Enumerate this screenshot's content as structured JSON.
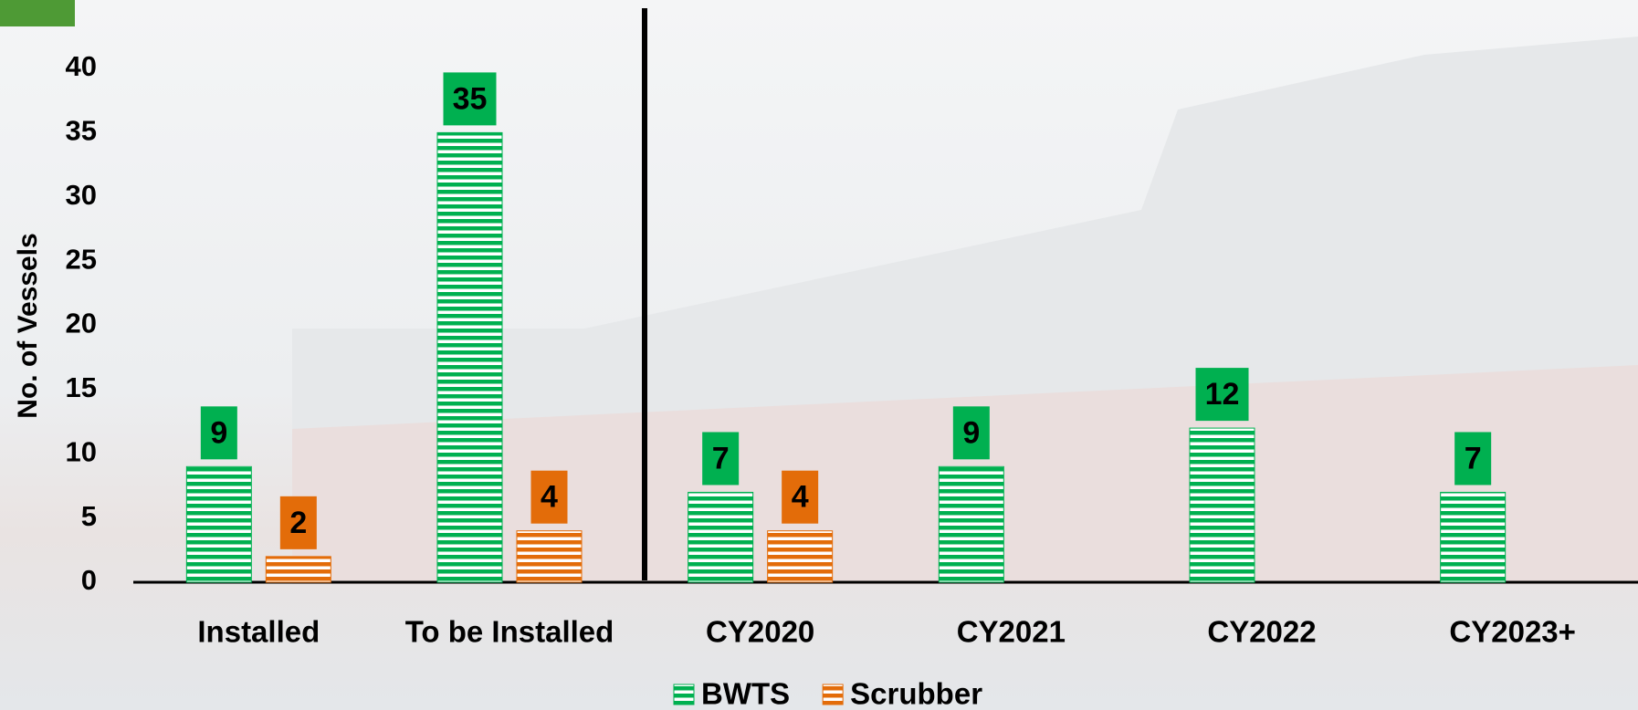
{
  "chart_data": {
    "type": "bar",
    "y_label": "No. of Vessels",
    "categories": [
      "Installed",
      "To be Installed",
      "CY2020",
      "CY2021",
      "CY2022",
      "CY2023+"
    ],
    "series": [
      {
        "name": "BWTS",
        "color": "#00b050",
        "values": [
          9,
          35,
          7,
          9,
          12,
          7
        ]
      },
      {
        "name": "Scrubber",
        "color": "#e36c09",
        "values": [
          2,
          4,
          4,
          null,
          null,
          null
        ]
      }
    ],
    "ylim": [
      0,
      40
    ],
    "yticks": [
      0,
      5,
      10,
      15,
      20,
      25,
      30,
      35,
      40
    ],
    "grid": false
  }
}
